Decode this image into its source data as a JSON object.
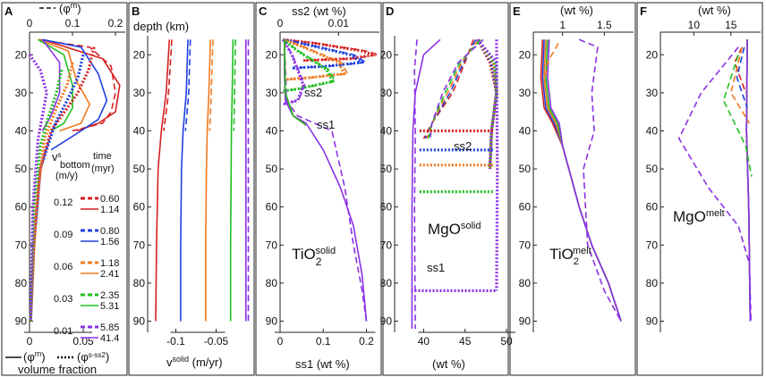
{
  "colors": {
    "red": "#d62020",
    "blue": "#2040e0",
    "orange": "#f07a20",
    "green": "#20c020",
    "purple": "#8a30e6",
    "black": "#111111"
  },
  "panel_letters": {
    "A": "A",
    "B": "B",
    "C": "C",
    "D": "D",
    "E": "E",
    "F": "F"
  },
  "panelA": {
    "top_label": "(φ",
    "top_label_sup": "m",
    "top_label_end": ")",
    "bottom_label_1": "(φ",
    "bottom_label_1_sup": "m",
    "bottom_label_1_end": ")",
    "bottom_label_2": "(φ",
    "bottom_label_2_sup": "s-ss2",
    "bottom_label_2_end": ")",
    "bottom_title": "volume fraction",
    "legend": {
      "v_head": "v",
      "v_sup": "s",
      "v_sub": "bottom",
      "v_unit": "(m/y)",
      "time_head": "time",
      "time_unit": "(myr)",
      "rows": [
        {
          "v": "0.12",
          "t1": "0.60",
          "t2": "1.14",
          "color": "red"
        },
        {
          "v": "0.09",
          "t1": "0.80",
          "t2": "1.56",
          "color": "blue"
        },
        {
          "v": "0.06",
          "t1": "1.18",
          "t2": "2.41",
          "color": "orange"
        },
        {
          "v": "0.03",
          "t1": "2.35",
          "t2": "5.31",
          "color": "green"
        },
        {
          "v": "0.01",
          "t1": "5.85",
          "t2": "41.4",
          "color": "purple"
        }
      ]
    }
  },
  "panelB": {
    "depth_label": "depth (km)",
    "xlabel": "v",
    "xlabel_sup": "solid",
    "xlabel_end": " (m/yr)"
  },
  "panelC": {
    "top_label": "ss2 (wt %)",
    "xlabel": "ss1 (wt %)",
    "ss1_label": "ss1",
    "ss2_label": "ss2",
    "species": "TiO",
    "species_sub": "2",
    "species_sup": "solid"
  },
  "panelD": {
    "xlabel": "(wt %)",
    "ss1_label": "ss1",
    "ss2_label": "ss2",
    "species": "MgO",
    "species_sup": "solid"
  },
  "panelE": {
    "top_label": "(wt %)",
    "species": "TiO",
    "species_sub": "2",
    "species_sup": "melt"
  },
  "panelF": {
    "top_label": "(wt %)",
    "species": "MgO",
    "species_sup": "melt"
  },
  "chart_data": [
    {
      "panel": "A",
      "type": "line",
      "ylabel": "depth (km)",
      "ylim": [
        92,
        15
      ],
      "top_axis": {
        "label": "(φm)",
        "ticks": [
          "0",
          "0.1",
          "0.2"
        ],
        "range": [
          0,
          0.2
        ]
      },
      "bottom_axis": {
        "label": "volume fraction",
        "ticks": [
          "0",
          "0.05"
        ],
        "range": [
          0,
          0.08
        ]
      },
      "yticks": [
        "20",
        "30",
        "40",
        "50",
        "60",
        "70",
        "80",
        "90"
      ],
      "series": [
        {
          "color": "red",
          "axis": "top",
          "style": "dashed",
          "points": [
            [
              0.02,
              16
            ],
            [
              0.14,
              18
            ],
            [
              0.19,
              23
            ],
            [
              0.2,
              30
            ],
            [
              0.19,
              35
            ],
            [
              0.17,
              38
            ],
            [
              0.1,
              40
            ]
          ]
        },
        {
          "color": "red",
          "axis": "top",
          "style": "solid",
          "points": [
            [
              0.03,
              16
            ],
            [
              0.17,
              21
            ],
            [
              0.21,
              28
            ],
            [
              0.2,
              35
            ],
            [
              0.16,
              38
            ],
            [
              0.11,
              40
            ]
          ]
        },
        {
          "color": "blue",
          "axis": "top",
          "style": "solid",
          "points": [
            [
              0.03,
              16
            ],
            [
              0.12,
              18
            ],
            [
              0.16,
              25
            ],
            [
              0.18,
              32
            ],
            [
              0.16,
              37
            ],
            [
              0.12,
              40
            ],
            [
              0.05,
              45
            ]
          ]
        },
        {
          "color": "orange",
          "axis": "top",
          "style": "solid",
          "points": [
            [
              0.02,
              16
            ],
            [
              0.09,
              19
            ],
            [
              0.11,
              27
            ],
            [
              0.14,
              33
            ],
            [
              0.12,
              38
            ],
            [
              0.07,
              40
            ]
          ]
        },
        {
          "color": "green",
          "axis": "top",
          "style": "solid",
          "points": [
            [
              0.02,
              16
            ],
            [
              0.08,
              20
            ],
            [
              0.1,
              28
            ],
            [
              0.1,
              34
            ],
            [
              0.08,
              38
            ],
            [
              0.05,
              40
            ]
          ]
        },
        {
          "color": "purple",
          "axis": "top",
          "style": "solid",
          "points": [
            [
              0.03,
              16
            ],
            [
              0.07,
              22
            ],
            [
              0.07,
              30
            ],
            [
              0.05,
              36
            ],
            [
              0.03,
              40
            ]
          ]
        },
        {
          "color": "red",
          "axis": "bottom",
          "style": "dotted",
          "points": [
            [
              0.06,
              18
            ],
            [
              0.055,
              24
            ],
            [
              0.045,
              30
            ],
            [
              0.03,
              36
            ],
            [
              0.02,
              40
            ],
            [
              0.01,
              50
            ],
            [
              0.004,
              70
            ],
            [
              0.001,
              90
            ]
          ]
        },
        {
          "color": "blue",
          "axis": "bottom",
          "style": "dotted",
          "points": [
            [
              0.05,
              20
            ],
            [
              0.045,
              26
            ],
            [
              0.035,
              32
            ],
            [
              0.024,
              38
            ],
            [
              0.01,
              50
            ],
            [
              0.004,
              70
            ],
            [
              0.001,
              90
            ]
          ]
        },
        {
          "color": "orange",
          "axis": "bottom",
          "style": "dotted",
          "points": [
            [
              0.04,
              22
            ],
            [
              0.035,
              28
            ],
            [
              0.025,
              34
            ],
            [
              0.014,
              42
            ],
            [
              0.006,
              60
            ],
            [
              0.001,
              90
            ]
          ]
        },
        {
          "color": "green",
          "axis": "bottom",
          "style": "dotted",
          "points": [
            [
              0.03,
              24
            ],
            [
              0.025,
              30
            ],
            [
              0.018,
              36
            ],
            [
              0.01,
              44
            ],
            [
              0.004,
              60
            ],
            [
              0.001,
              90
            ]
          ]
        },
        {
          "color": "purple",
          "axis": "bottom",
          "style": "dotted",
          "points": [
            [
              0.0,
              20
            ],
            [
              0.01,
              24
            ],
            [
              0.016,
              30
            ],
            [
              0.012,
              36
            ],
            [
              0.008,
              42
            ],
            [
              0.003,
              60
            ],
            [
              0.001,
              90
            ]
          ]
        }
      ]
    },
    {
      "panel": "B",
      "type": "line",
      "xlabel": "vsolid (m/yr)",
      "xlim": [
        -0.135,
        -0.005
      ],
      "ylim": [
        92,
        15
      ],
      "xticks": [
        "-0.1",
        "-0.05"
      ],
      "series": [
        {
          "color": "red",
          "values": [
            [
              -0.108,
              16
            ],
            [
              -0.112,
              30
            ],
            [
              -0.118,
              40
            ],
            [
              -0.122,
              50
            ],
            [
              -0.124,
              70
            ],
            [
              -0.125,
              90
            ]
          ]
        },
        {
          "color": "blue",
          "values": [
            [
              -0.085,
              16
            ],
            [
              -0.087,
              30
            ],
            [
              -0.091,
              40
            ],
            [
              -0.093,
              50
            ],
            [
              -0.094,
              70
            ],
            [
              -0.094,
              90
            ]
          ]
        },
        {
          "color": "orange",
          "values": [
            [
              -0.057,
              16
            ],
            [
              -0.059,
              30
            ],
            [
              -0.061,
              40
            ],
            [
              -0.062,
              50
            ],
            [
              -0.063,
              70
            ],
            [
              -0.063,
              90
            ]
          ]
        },
        {
          "color": "green",
          "values": [
            [
              -0.029,
              16
            ],
            [
              -0.03,
              30
            ],
            [
              -0.031,
              40
            ],
            [
              -0.032,
              70
            ],
            [
              -0.032,
              90
            ]
          ]
        },
        {
          "color": "purple",
          "values": [
            [
              -0.013,
              16
            ],
            [
              -0.013,
              40
            ],
            [
              -0.013,
              90
            ]
          ]
        }
      ]
    },
    {
      "panel": "C",
      "type": "line",
      "top_axis": {
        "label": "ss2 (wt %)",
        "ticks": [
          "0",
          "0.01"
        ],
        "range": [
          0,
          0.017
        ]
      },
      "bottom_axis": {
        "label": "ss1 (wt %)",
        "ticks": [
          "0",
          "0.1",
          "0.2"
        ],
        "range": [
          0,
          0.23
        ]
      },
      "ylim": [
        92,
        15
      ],
      "series": [
        {
          "label": "ss1",
          "color": "purple",
          "style": "solid",
          "points": [
            [
              0.01,
              16
            ],
            [
              0.01,
              25
            ],
            [
              0.012,
              32
            ],
            [
              0.03,
              36
            ],
            [
              0.06,
              38
            ],
            [
              0.1,
              45
            ],
            [
              0.14,
              55
            ],
            [
              0.17,
              65
            ],
            [
              0.19,
              78
            ],
            [
              0.2,
              90
            ]
          ]
        },
        {
          "label": "ss1",
          "color": "purple",
          "style": "dashed",
          "points": [
            [
              0.01,
              16
            ],
            [
              0.015,
              32
            ],
            [
              0.04,
              36
            ],
            [
              0.12,
              40
            ],
            [
              0.15,
              55
            ],
            [
              0.17,
              70
            ],
            [
              0.19,
              82
            ],
            [
              0.2,
              90
            ]
          ]
        }
      ]
    },
    {
      "panel": "D",
      "type": "line",
      "xlabel": "(wt %)",
      "xlim": [
        36.5,
        50
      ],
      "ylim": [
        92,
        15
      ],
      "xticks": [
        "40",
        "45",
        "50"
      ],
      "series": [
        {
          "label": "ss2 horizontal red",
          "color": "red",
          "points": [
            [
              39.5,
              40
            ],
            [
              48.5,
              40
            ]
          ]
        },
        {
          "label": "ss2 horizontal blue",
          "color": "blue",
          "points": [
            [
              39.5,
              45
            ],
            [
              48.5,
              45
            ]
          ]
        },
        {
          "label": "ss2 horizontal orange",
          "color": "orange",
          "points": [
            [
              39.5,
              49
            ],
            [
              48.5,
              49
            ]
          ]
        },
        {
          "label": "ss2 horizontal green",
          "color": "green",
          "points": [
            [
              39.5,
              56
            ],
            [
              48.5,
              56
            ]
          ]
        },
        {
          "label": "ss1 horizontal purple",
          "color": "purple",
          "points": [
            [
              38.5,
              82
            ],
            [
              48.8,
              82
            ]
          ]
        }
      ]
    },
    {
      "panel": "E",
      "type": "line",
      "top_axis": {
        "label": "(wt %)",
        "ticks": [
          "1",
          "1.5"
        ],
        "range": [
          0.65,
          1.85
        ]
      },
      "ylim": [
        92,
        15
      ]
    },
    {
      "panel": "F",
      "type": "line",
      "top_axis": {
        "label": "(wt %)",
        "ticks": [
          "10",
          "15"
        ],
        "range": [
          5.5,
          19
        ]
      },
      "ylim": [
        92,
        15
      ]
    }
  ]
}
